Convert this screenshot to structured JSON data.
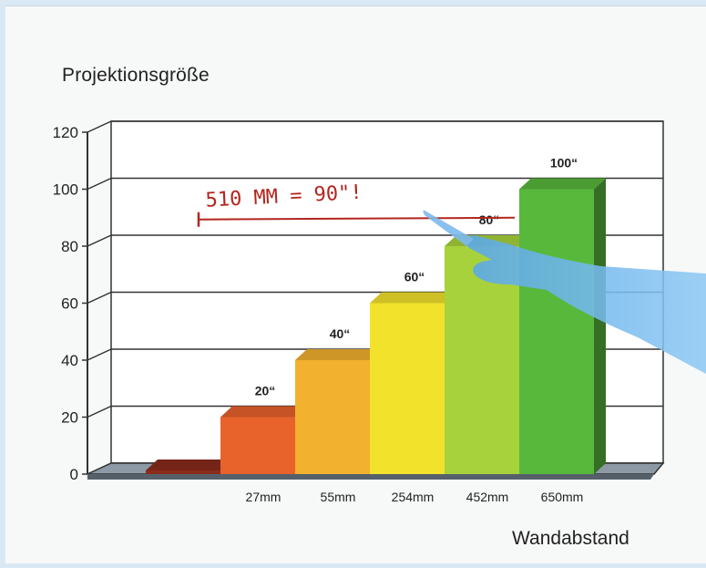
{
  "chart_data": {
    "type": "bar",
    "title": "",
    "ylabel": "Projektionsgröße",
    "xlabel": "Wandabstand",
    "categories": [
      "",
      "27mm",
      "55mm",
      "254mm",
      "452mm",
      "650mm"
    ],
    "values": [
      0,
      20,
      40,
      60,
      80,
      100
    ],
    "data_labels": [
      "",
      "20“",
      "40“",
      "60“",
      "80“",
      "100“"
    ],
    "ylim": [
      0,
      120
    ],
    "yticks": [
      0,
      20,
      40,
      60,
      80,
      100,
      120
    ],
    "grid": true,
    "bar_colors": [
      "#8a2c1c",
      "#e8622c",
      "#f2b12e",
      "#f2e22c",
      "#a8d23c",
      "#58b83c"
    ],
    "annotation": {
      "text": "510 MM = 90\"!",
      "value": 90
    }
  }
}
